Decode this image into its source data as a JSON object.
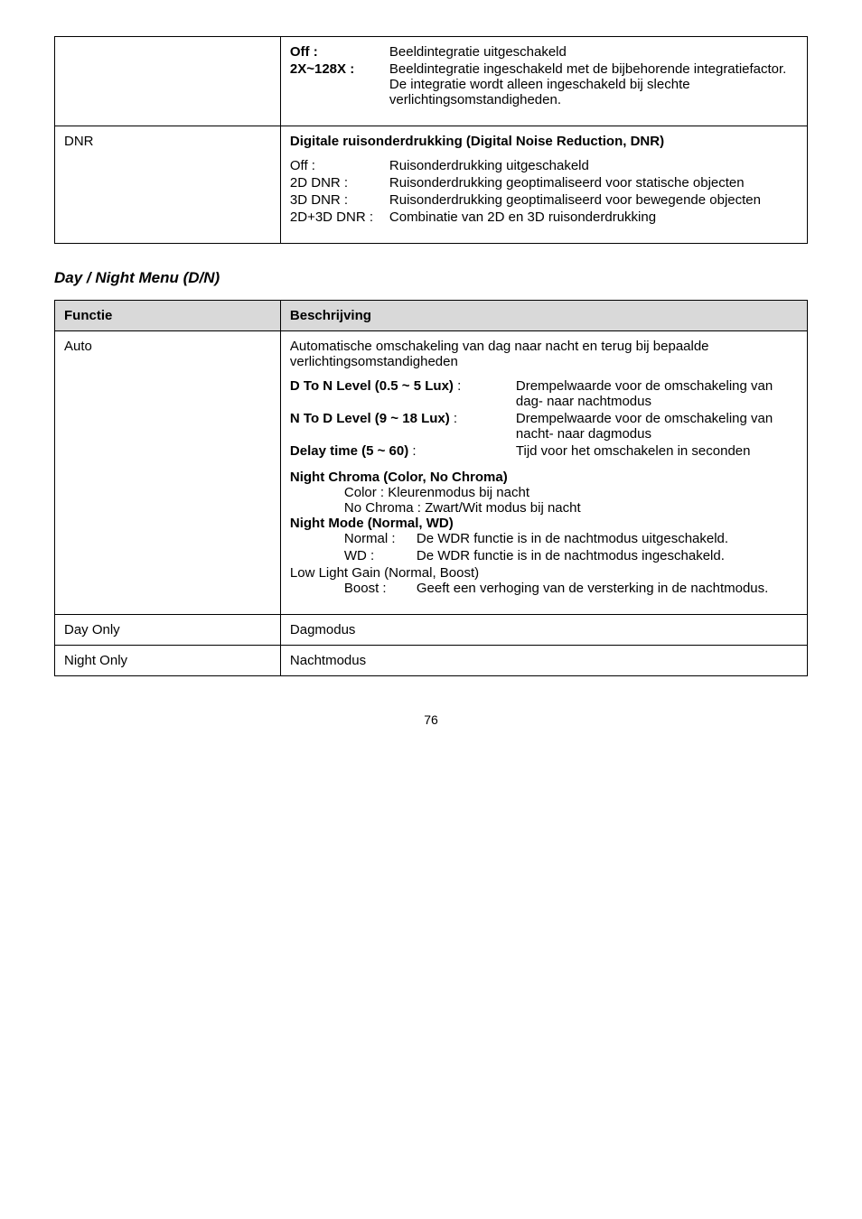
{
  "table1": {
    "row1": {
      "kv": [
        {
          "k": "Off :",
          "k_bold": true,
          "v": "Beeldintegratie uitgeschakeld"
        },
        {
          "k": "2X~128X :",
          "k_bold": true,
          "v": "Beeldintegratie ingeschakeld met de bijbehorende integratiefactor. De integratie wordt alleen ingeschakeld bij slechte verlichtingsomstandigheden."
        }
      ]
    },
    "row2": {
      "left": "DNR",
      "title": "Digitale ruisonderdrukking (Digital Noise Reduction, DNR)",
      "kv": [
        {
          "k": "Off :",
          "v": "Ruisonderdrukking uitgeschakeld"
        },
        {
          "k": "2D DNR :",
          "v": "Ruisonderdrukking geoptimaliseerd voor statische objecten"
        },
        {
          "k": "3D DNR :",
          "v": "Ruisonderdrukking geoptimaliseerd voor bewegende objecten"
        },
        {
          "k": "2D+3D DNR :",
          "v": "Combinatie van 2D en 3D ruisonderdrukking"
        }
      ]
    }
  },
  "section_heading": "Day / Night Menu (D/N)",
  "table2": {
    "header": {
      "c1": "Functie",
      "c2": "Beschrijving"
    },
    "auto": {
      "left": "Auto",
      "intro": "Automatische omschakeling van dag naar nacht en terug bij bepaalde verlichtingsomstandigheden",
      "params": [
        {
          "k": "D To N Level (0.5 ~ 5 Lux)",
          "sep": " : ",
          "v": "Drempelwaarde voor de omschakeling van dag- naar nachtmodus"
        },
        {
          "k": "N To D Level (9 ~ 18 Lux)",
          "sep": " : ",
          "v": "Drempelwaarde voor de omschakeling van nacht- naar dagmodus"
        },
        {
          "k": "Delay time (5 ~ 60)",
          "sep": " : ",
          "v": "Tijd voor het omschakelen in seconden"
        }
      ],
      "night_chroma_title": "Night Chroma (Color, No Chroma)",
      "night_chroma_lines": [
        "Color : Kleurenmodus bij nacht",
        "No Chroma : Zwart/Wit modus bij nacht"
      ],
      "night_mode_title": "Night Mode (Normal, WD)",
      "night_mode_kv": [
        {
          "k": "Normal :",
          "v": "De WDR functie is in de nachtmodus uitgeschakeld."
        },
        {
          "k": "WD :",
          "v": "De WDR functie is in de nachtmodus ingeschakeld."
        }
      ],
      "low_light_title": "Low Light Gain (Normal, Boost)",
      "low_light_kv": [
        {
          "k": "Boost :",
          "v": "Geeft een verhoging van de versterking in de nachtmodus."
        }
      ]
    },
    "day_only": {
      "l": "Day Only",
      "r": "Dagmodus"
    },
    "night_only": {
      "l": "Night Only",
      "r": "Nachtmodus"
    }
  },
  "page_number": "76"
}
